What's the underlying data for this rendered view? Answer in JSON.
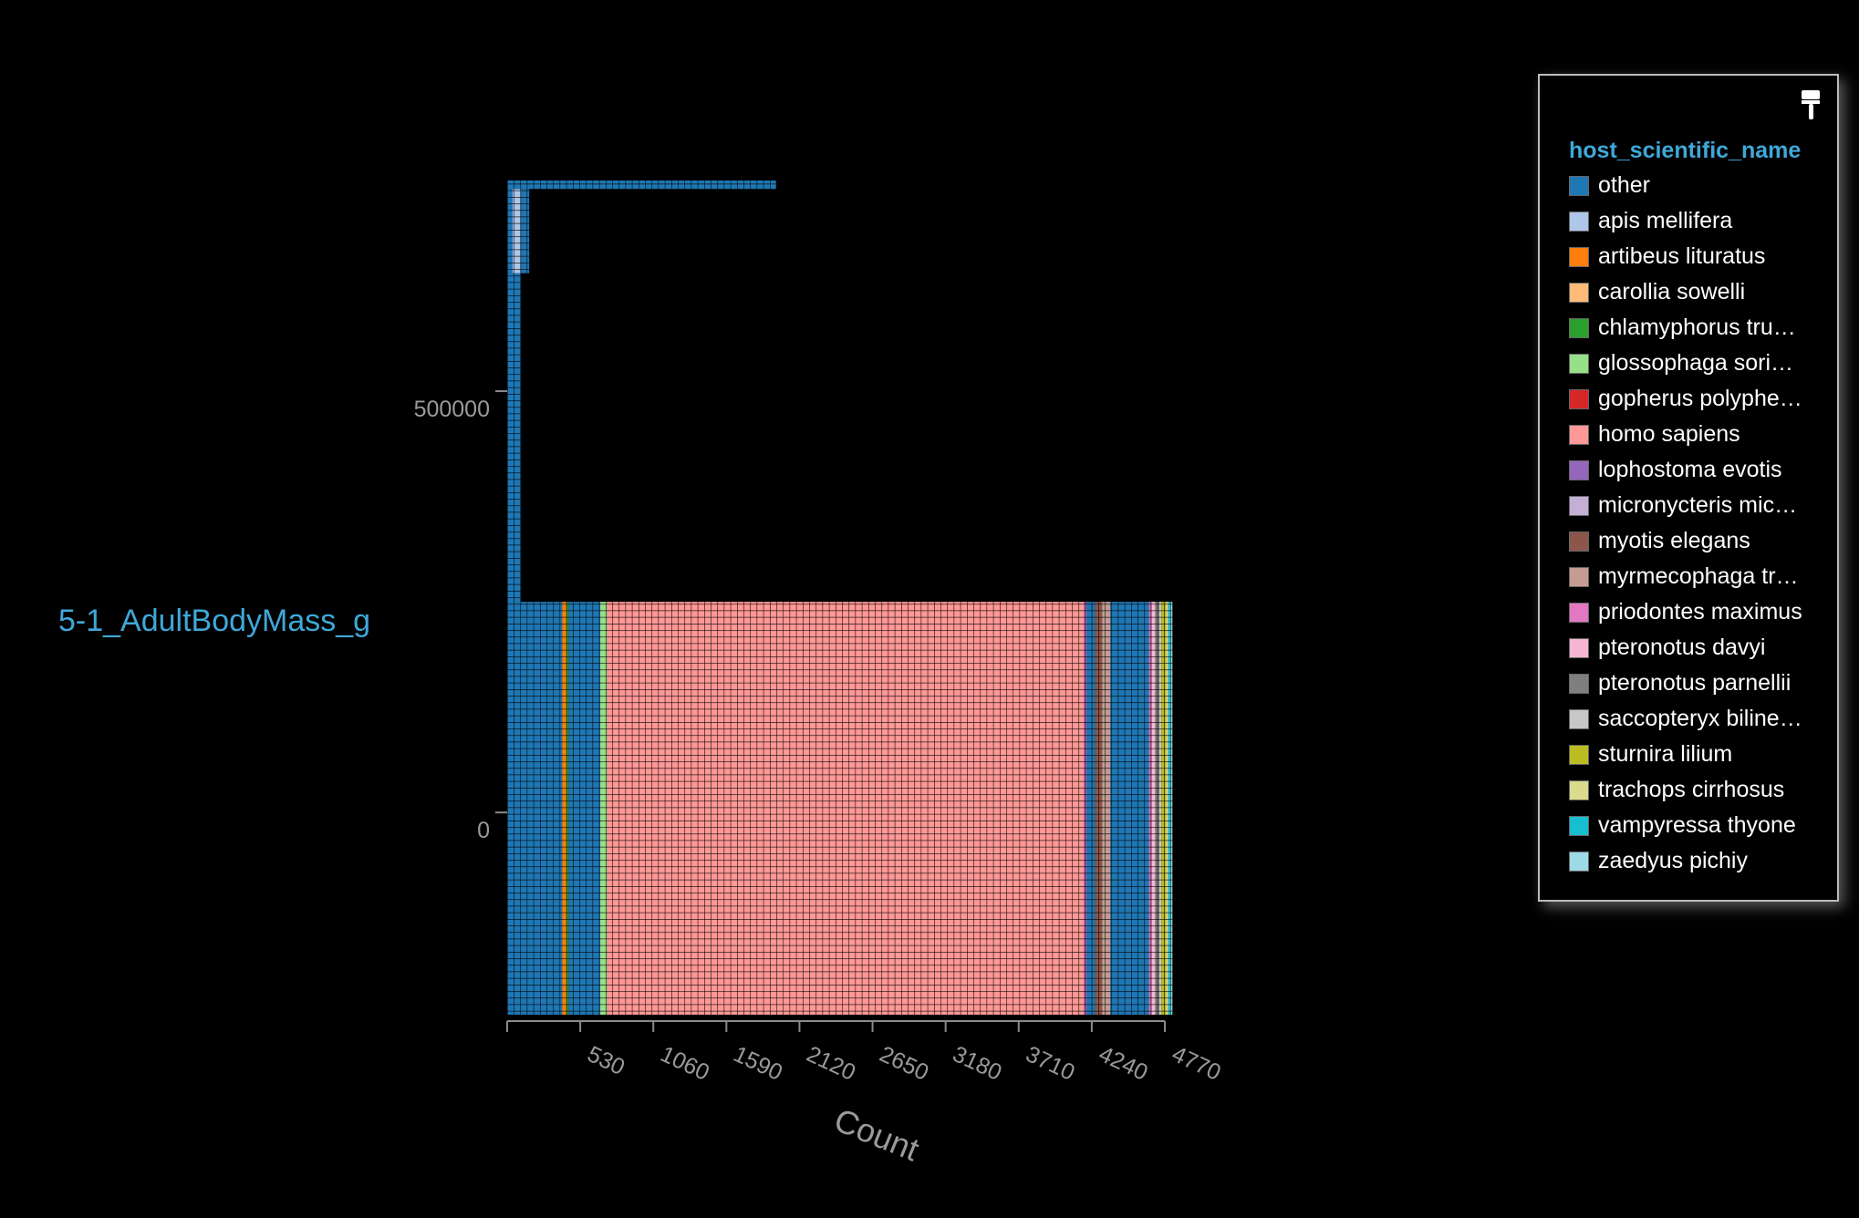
{
  "chart_data": {
    "type": "bar",
    "title": "",
    "ylabel": "5-1_AdultBodyMass_g",
    "xlabel": "Count",
    "x_ticks": [
      "530",
      "1060",
      "1590",
      "2120",
      "2650",
      "3180",
      "3710",
      "4240",
      "4770"
    ],
    "y_ticks": [
      "500000",
      "0"
    ],
    "xlim": [
      0,
      4770
    ],
    "ylim": [
      -240000,
      750000
    ],
    "grid": false,
    "legend_placement": "right",
    "bins": [
      {
        "y_range": [
          -240000,
          250000
        ],
        "segments": [
          {
            "category": "other",
            "count": 400
          },
          {
            "category": "artibeus lituratus",
            "count": 30
          },
          {
            "category": "chlamyphorus truncatus",
            "count": 15
          },
          {
            "category": "other",
            "count": 230
          },
          {
            "category": "glossophaga soricina",
            "count": 50
          },
          {
            "category": "homo sapiens",
            "count": 3460
          },
          {
            "category": "lophostoma evotis",
            "count": 20
          },
          {
            "category": "other",
            "count": 60
          },
          {
            "category": "myotis elegans",
            "count": 50
          },
          {
            "category": "myrmecophaga tridactyla",
            "count": 60
          },
          {
            "category": "other",
            "count": 280
          },
          {
            "category": "priodontes maximus",
            "count": 20
          },
          {
            "category": "pteronotus davyi",
            "count": 25
          },
          {
            "category": "pteronotus parnellii",
            "count": 30
          },
          {
            "category": "saccopteryx bilineata",
            "count": 15
          },
          {
            "category": "sturnira lilium",
            "count": 35
          },
          {
            "category": "trachops cirrhosus",
            "count": 15
          },
          {
            "category": "vampyressa thyone",
            "count": 15
          },
          {
            "category": "zaedyus pichiy",
            "count": 15
          }
        ]
      },
      {
        "y_range": [
          250000,
          640000
        ],
        "segments": [
          {
            "category": "other",
            "count": 100
          }
        ]
      },
      {
        "y_range": [
          640000,
          740000
        ],
        "segments": [
          {
            "category": "other",
            "count": 40
          },
          {
            "category": "apis mellifera",
            "count": 60
          },
          {
            "category": "other",
            "count": 60
          }
        ]
      },
      {
        "y_range": [
          740000,
          750000
        ],
        "segments": [
          {
            "category": "other",
            "count": 1950
          }
        ]
      }
    ]
  },
  "legend": {
    "title": "host_scientific_name",
    "icon": "paint-brush-icon",
    "items": [
      {
        "label": "other",
        "color": "#1f77b4"
      },
      {
        "label": "apis mellifera",
        "color": "#aec7e8"
      },
      {
        "label": "artibeus lituratus",
        "color": "#ff7f0e"
      },
      {
        "label": "carollia sowelli",
        "color": "#ffbb78"
      },
      {
        "label": "chlamyphorus tru…",
        "color": "#2ca02c"
      },
      {
        "label": "glossophaga sori…",
        "color": "#98df8a"
      },
      {
        "label": "gopherus polyphe…",
        "color": "#d62728"
      },
      {
        "label": "homo sapiens",
        "color": "#ff9896"
      },
      {
        "label": "lophostoma evotis",
        "color": "#9467bd"
      },
      {
        "label": "micronycteris mic…",
        "color": "#c5b0d5"
      },
      {
        "label": "myotis elegans",
        "color": "#8c564b"
      },
      {
        "label": "myrmecophaga tr…",
        "color": "#c49c94"
      },
      {
        "label": "priodontes maximus",
        "color": "#e377c2"
      },
      {
        "label": "pteronotus davyi",
        "color": "#f7b6d2"
      },
      {
        "label": "pteronotus parnellii",
        "color": "#7f7f7f"
      },
      {
        "label": "saccopteryx biline…",
        "color": "#c7c7c7"
      },
      {
        "label": "sturnira lilium",
        "color": "#bcbd22"
      },
      {
        "label": "trachops cirrhosus",
        "color": "#dbdb8d"
      },
      {
        "label": "vampyressa thyone",
        "color": "#17becf"
      },
      {
        "label": "zaedyus pichiy",
        "color": "#9edae5"
      }
    ]
  },
  "colors": {
    "background": "#000000",
    "axis": "#8a8a8a",
    "tick_label": "#9a9a9a",
    "accent": "#3fa8d8"
  }
}
